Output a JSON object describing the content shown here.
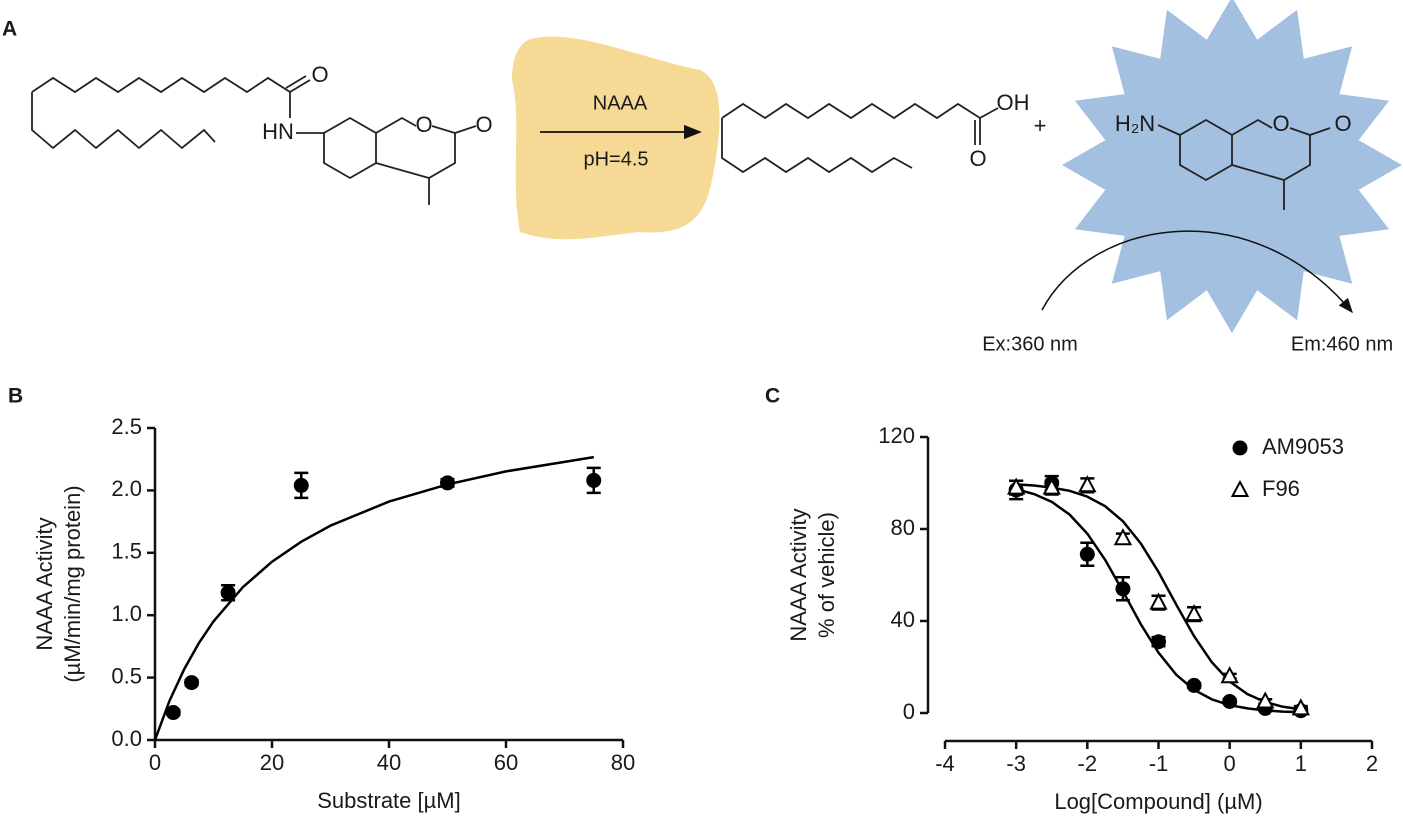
{
  "scheme": {
    "label": "A",
    "enzyme": "NAAA",
    "condition": "pH=4.5",
    "substrate_atoms": [
      "O",
      "HN",
      "O",
      "O"
    ],
    "acid_atoms": [
      "OH",
      "O"
    ],
    "plus": "+",
    "amine_atoms": [
      "H₂N",
      "O",
      "O"
    ],
    "excitation": "Ex:360 nm",
    "emission": "Em:460 nm"
  },
  "chart_data": [
    {
      "type": "scatter",
      "label": "B",
      "xlabel": "Substrate [µM]",
      "ylabel": [
        "NAAA Activity",
        "(µM/min/mg protein)"
      ],
      "xlim": [
        0,
        80
      ],
      "xticks": [
        0,
        20,
        40,
        60,
        80
      ],
      "ylim": [
        0,
        2.5
      ],
      "yticks": [
        {
          "value": 0,
          "label": "0.0"
        },
        0.5,
        {
          "value": 1,
          "label": "1.0"
        },
        1.5,
        {
          "value": 2,
          "label": "2.0"
        },
        2.5
      ],
      "points": {
        "marker": "circle",
        "color": "#000000",
        "x": [
          3.125,
          6.25,
          12.5,
          25,
          50,
          75
        ],
        "values": [
          0.22,
          0.46,
          1.18,
          2.04,
          2.06,
          2.08
        ],
        "errors": [
          0.02,
          0.02,
          0.06,
          0.1,
          0.03,
          0.1
        ]
      },
      "curve": {
        "x": [
          0,
          2.5,
          5,
          7.5,
          10,
          15,
          20,
          25,
          30,
          40,
          50,
          60,
          75
        ],
        "values": [
          0,
          0.316,
          0.569,
          0.777,
          0.95,
          1.224,
          1.429,
          1.589,
          1.718,
          1.91,
          2.048,
          2.152,
          2.267
        ]
      }
    },
    {
      "type": "scatter",
      "label": "C",
      "xlabel": "Log[Compound] (µM)",
      "ylabel": [
        "NAAA Activity",
        "% of vehicle)"
      ],
      "xlim": [
        -4,
        2
      ],
      "xticks": [
        -4,
        -3,
        -2,
        -1,
        0,
        1,
        2
      ],
      "ylim": [
        0,
        120
      ],
      "yticks": [
        0,
        40,
        80,
        120
      ],
      "legend": "upper right",
      "curve_x": [
        -3,
        -2.75,
        -2.5,
        -2.25,
        -2,
        -1.75,
        -1.5,
        -1.25,
        -1,
        -0.75,
        -0.5,
        -0.25,
        0,
        0.25,
        0.5,
        0.75,
        1
      ],
      "series": [
        {
          "name": "AM9053",
          "marker": "circle",
          "color": "#000000",
          "x": [
            -3,
            -2.5,
            -2,
            -1.5,
            -1,
            -0.5,
            0,
            0.5,
            1
          ],
          "values": [
            97,
            100,
            69,
            54,
            31,
            12,
            5,
            2,
            1
          ],
          "errors": [
            4,
            3,
            5,
            5,
            2,
            1,
            1,
            1,
            1
          ],
          "curve_values": [
            97.3,
            95.2,
            91.8,
            86.3,
            78,
            66.6,
            52.9,
            38.7,
            26.2,
            16.6,
            10.1,
            5.9,
            3.4,
            2,
            1.1,
            0.6,
            0.4
          ]
        },
        {
          "name": "F96",
          "marker": "triangle",
          "color": "#000000",
          "x": [
            -3,
            -2.5,
            -2,
            -1.5,
            -1,
            -0.5,
            0,
            0.5,
            1
          ],
          "values": [
            98,
            98,
            99,
            76,
            48,
            43,
            16,
            5,
            2
          ],
          "errors": [
            3,
            3,
            3,
            2,
            3,
            3,
            1,
            1,
            1
          ],
          "curve_values": [
            99.4,
            98.9,
            98,
            96.6,
            94.1,
            89.9,
            83.4,
            73.8,
            61.3,
            47.1,
            33.4,
            22,
            13.7,
            8.2,
            4.8,
            2.7,
            1.6
          ]
        }
      ]
    }
  ]
}
